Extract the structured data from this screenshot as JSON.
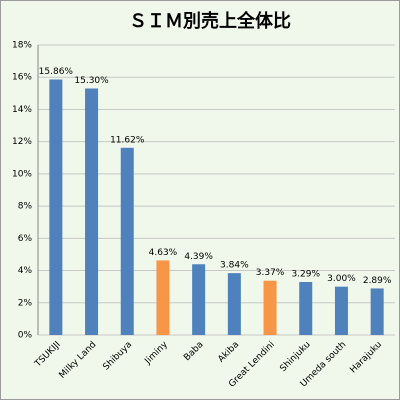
{
  "chart_data": {
    "type": "bar",
    "title": "ＳＩＭ別売上全体比",
    "categories": [
      "TSUKIJI",
      "Milky Land",
      "Shibuya",
      "Jiminy",
      "Baba",
      "Akiba",
      "Great Lendini",
      "Shinjuku",
      "Umeda south",
      "Harajuku"
    ],
    "values": [
      15.86,
      15.3,
      11.62,
      4.63,
      4.39,
      3.84,
      3.37,
      3.29,
      3.0,
      2.89
    ],
    "value_labels": [
      "15.86%",
      "15.30%",
      "11.62%",
      "4.63%",
      "4.39%",
      "3.84%",
      "3.37%",
      "3.29%",
      "3.00%",
      "2.89%"
    ],
    "colors": [
      "#4f81bd",
      "#4f81bd",
      "#4f81bd",
      "#f79646",
      "#4f81bd",
      "#4f81bd",
      "#f79646",
      "#4f81bd",
      "#4f81bd",
      "#4f81bd"
    ],
    "ylim": [
      0,
      18
    ],
    "yticks": [
      {
        "value": 0,
        "label": "0%"
      },
      {
        "value": 2,
        "label": "2%"
      },
      {
        "value": 4,
        "label": "4%"
      },
      {
        "value": 6,
        "label": "6%"
      },
      {
        "value": 8,
        "label": "8%"
      },
      {
        "value": 10,
        "label": "10%"
      },
      {
        "value": 12,
        "label": "12%"
      },
      {
        "value": 14,
        "label": "14%"
      },
      {
        "value": 16,
        "label": "16%"
      },
      {
        "value": 18,
        "label": "18%"
      }
    ],
    "grid": true
  }
}
